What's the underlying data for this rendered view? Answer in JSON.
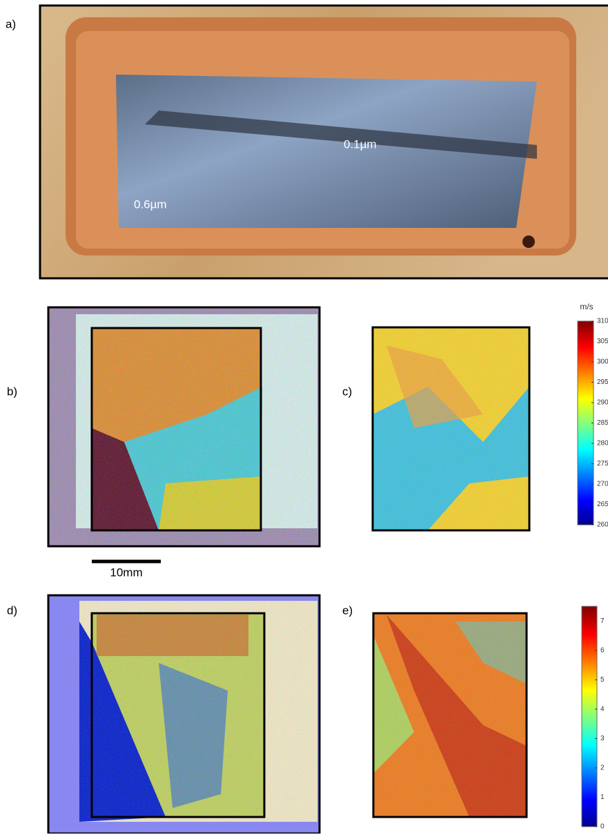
{
  "panels": {
    "a": {
      "label": "a)",
      "annotations": [
        "0.1µm",
        "0.6µm"
      ]
    },
    "b": {
      "label": "b)"
    },
    "c": {
      "label": "c)"
    },
    "d": {
      "label": "d)"
    },
    "e": {
      "label": "e)"
    }
  },
  "scale_bar": "10mm",
  "colorbar_velocity": {
    "unit": "m/s",
    "ylim": [
      260,
      310
    ],
    "yticks": [
      310,
      305,
      300,
      295,
      290,
      285,
      280,
      275,
      270,
      265,
      260
    ]
  },
  "colorbar_e": {
    "ylim": [
      0,
      7.5
    ],
    "yticks": [
      0,
      1,
      2,
      3,
      4,
      5,
      6,
      7
    ]
  }
}
